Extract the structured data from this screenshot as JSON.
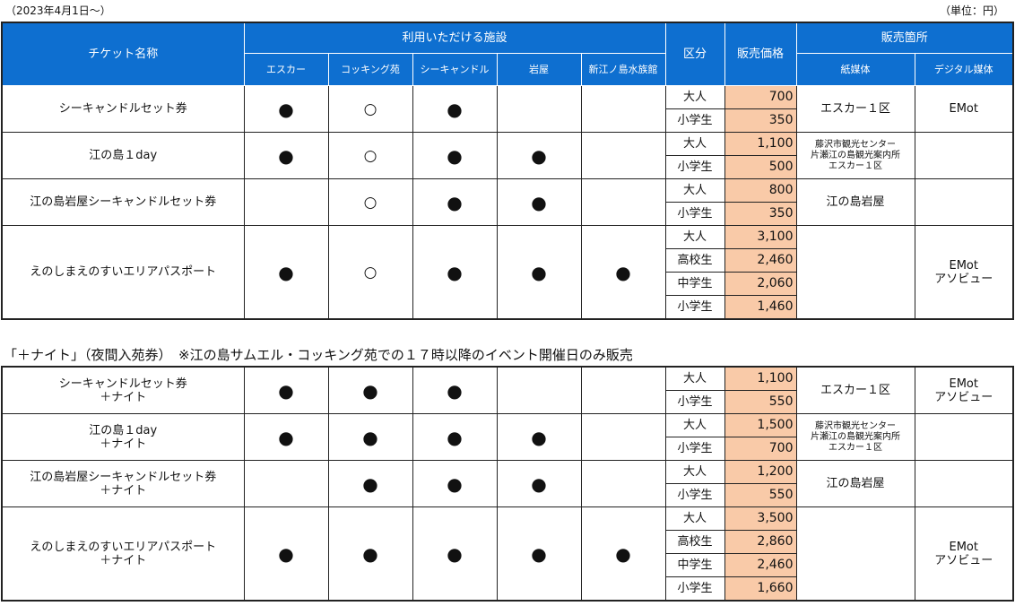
{
  "header_notes": {
    "date": "（2023年4月1日～）",
    "unit": "（単位：円）"
  },
  "columns": {
    "ticket_name": "チケット名称",
    "facilities_group": "利用いただける施設",
    "facilities": [
      "エスカー",
      "コッキング苑",
      "シーキャンドル",
      "岩屋",
      "新江ノ島水族館"
    ],
    "category": "区分",
    "price": "販売価格",
    "sales_group": "販売箇所",
    "paper": "紙媒体",
    "digital": "デジタル媒体"
  },
  "marks": {
    "filled": "●",
    "open": "○"
  },
  "table1": {
    "rows": [
      {
        "name_lines": [
          "シーキャンドルセット券"
        ],
        "marks": [
          "●",
          "○",
          "●",
          "",
          ""
        ],
        "prices": [
          {
            "cat": "大人",
            "price": "700"
          },
          {
            "cat": "小学生",
            "price": "350"
          }
        ],
        "paper": [
          "エスカー１区"
        ],
        "digital": [
          "EMot"
        ]
      },
      {
        "name_lines": [
          "江の島１day"
        ],
        "marks": [
          "●",
          "○",
          "●",
          "●",
          ""
        ],
        "prices": [
          {
            "cat": "大人",
            "price": "1,100"
          },
          {
            "cat": "小学生",
            "price": "500"
          }
        ],
        "paper": [
          "藤沢市観光センター",
          "片瀬江の島観光案内所",
          "エスカー１区"
        ],
        "digital": []
      },
      {
        "name_lines": [
          "江の島岩屋シーキャンドルセット券"
        ],
        "marks": [
          "",
          "○",
          "●",
          "●",
          ""
        ],
        "prices": [
          {
            "cat": "大人",
            "price": "800"
          },
          {
            "cat": "小学生",
            "price": "350"
          }
        ],
        "paper": [
          "江の島岩屋"
        ],
        "digital": []
      },
      {
        "name_lines": [
          "えのしまえのすいエリアパスポート"
        ],
        "marks": [
          "●",
          "○",
          "●",
          "●",
          "●"
        ],
        "prices": [
          {
            "cat": "大人",
            "price": "3,100"
          },
          {
            "cat": "高校生",
            "price": "2,460"
          },
          {
            "cat": "中学生",
            "price": "2,060"
          },
          {
            "cat": "小学生",
            "price": "1,460"
          }
        ],
        "paper": [],
        "digital": [
          "EMot",
          "アソビュー"
        ]
      }
    ]
  },
  "subtitle": "「＋ナイト」（夜間入苑券）　※江の島サムエル・コッキング苑での１７時以降のイベント開催日のみ販売",
  "table2": {
    "rows": [
      {
        "name_lines": [
          "シーキャンドルセット券",
          "＋ナイト"
        ],
        "marks": [
          "●",
          "●",
          "●",
          "",
          ""
        ],
        "prices": [
          {
            "cat": "大人",
            "price": "1,100"
          },
          {
            "cat": "小学生",
            "price": "550"
          }
        ],
        "paper": [
          "エスカー１区"
        ],
        "digital": [
          "EMot",
          "アソビュー"
        ]
      },
      {
        "name_lines": [
          "江の島１day",
          "＋ナイト"
        ],
        "marks": [
          "●",
          "●",
          "●",
          "●",
          ""
        ],
        "prices": [
          {
            "cat": "大人",
            "price": "1,500"
          },
          {
            "cat": "小学生",
            "price": "700"
          }
        ],
        "paper": [
          "藤沢市観光センター",
          "片瀬江の島観光案内所",
          "エスカー１区"
        ],
        "digital": []
      },
      {
        "name_lines": [
          "江の島岩屋シーキャンドルセット券",
          "＋ナイト"
        ],
        "marks": [
          "",
          "●",
          "●",
          "●",
          ""
        ],
        "prices": [
          {
            "cat": "大人",
            "price": "1,200"
          },
          {
            "cat": "小学生",
            "price": "550"
          }
        ],
        "paper": [
          "江の島岩屋"
        ],
        "digital": []
      },
      {
        "name_lines": [
          "えのしまえのすいエリアパスポート",
          "＋ナイト"
        ],
        "marks": [
          "●",
          "●",
          "●",
          "●",
          "●"
        ],
        "prices": [
          {
            "cat": "大人",
            "price": "3,500"
          },
          {
            "cat": "高校生",
            "price": "2,860"
          },
          {
            "cat": "中学生",
            "price": "2,460"
          },
          {
            "cat": "小学生",
            "price": "1,660"
          }
        ],
        "paper": [],
        "digital": [
          "EMot",
          "アソビュー"
        ]
      }
    ]
  }
}
